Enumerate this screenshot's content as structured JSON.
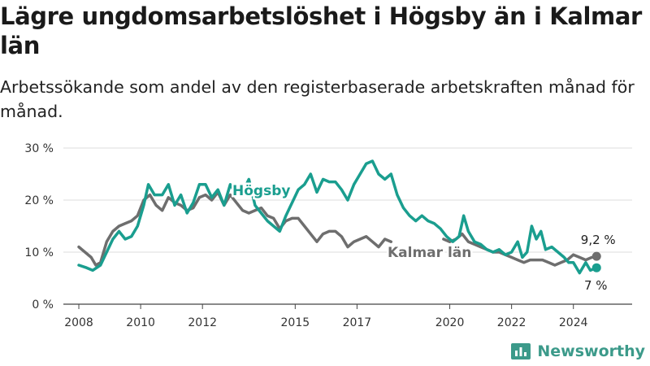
{
  "title": "Lägre ungdomsarbetslöshet i Högsby än i Kalmar län",
  "subtitle": "Arbetssökande som andel av den registerbaserade arbetskraften månad för månad.",
  "brand": "Newsworthy",
  "colors": {
    "hogsby": "#1a9e8f",
    "kalmar": "#6e6e6e",
    "grid": "#dddddd",
    "axis": "#444444"
  },
  "chart_data": {
    "type": "line",
    "x_ticks": [
      "2008",
      "2010",
      "2012",
      "2015",
      "2017",
      "2020",
      "2022",
      "2024"
    ],
    "y_ticks": [
      "0 %",
      "10 %",
      "20 %",
      "30 %"
    ],
    "ylim": [
      0,
      30
    ],
    "xlim": [
      2007.5,
      2025.9
    ],
    "series": [
      {
        "name": "Högsby",
        "end_label": "7 %",
        "points": [
          [
            2008.0,
            7.5
          ],
          [
            2008.25,
            7.0
          ],
          [
            2008.45,
            6.5
          ],
          [
            2008.7,
            7.5
          ],
          [
            2008.9,
            10.0
          ],
          [
            2009.1,
            12.5
          ],
          [
            2009.3,
            14.0
          ],
          [
            2009.5,
            12.5
          ],
          [
            2009.7,
            13.0
          ],
          [
            2009.9,
            15.0
          ],
          [
            2010.1,
            19.0
          ],
          [
            2010.25,
            23.0
          ],
          [
            2010.45,
            21.0
          ],
          [
            2010.7,
            21.0
          ],
          [
            2010.9,
            23.0
          ],
          [
            2011.1,
            19.0
          ],
          [
            2011.3,
            21.0
          ],
          [
            2011.5,
            17.5
          ],
          [
            2011.7,
            19.5
          ],
          [
            2011.9,
            23.0
          ],
          [
            2012.1,
            23.0
          ],
          [
            2012.3,
            20.5
          ],
          [
            2012.5,
            22.0
          ],
          [
            2012.7,
            19.0
          ],
          [
            2012.9,
            23.0
          ],
          [
            2013.1,
            21.0
          ],
          [
            2013.3,
            21.5
          ],
          [
            2013.5,
            24.0
          ],
          [
            2013.7,
            19.0
          ],
          [
            2013.9,
            17.5
          ],
          [
            2014.1,
            16.0
          ],
          [
            2014.3,
            15.0
          ],
          [
            2014.5,
            14.0
          ],
          [
            2014.7,
            17.0
          ],
          [
            2014.9,
            19.5
          ],
          [
            2015.1,
            22.0
          ],
          [
            2015.3,
            23.0
          ],
          [
            2015.5,
            25.0
          ],
          [
            2015.7,
            21.5
          ],
          [
            2015.9,
            24.0
          ],
          [
            2016.1,
            23.5
          ],
          [
            2016.3,
            23.5
          ],
          [
            2016.5,
            22.0
          ],
          [
            2016.7,
            20.0
          ],
          [
            2016.9,
            23.0
          ],
          [
            2017.1,
            25.0
          ],
          [
            2017.3,
            27.0
          ],
          [
            2017.5,
            27.5
          ],
          [
            2017.7,
            25.0
          ],
          [
            2017.9,
            24.0
          ],
          [
            2018.1,
            25.0
          ],
          [
            2018.3,
            21.0
          ],
          [
            2018.5,
            18.5
          ],
          [
            2018.7,
            17.0
          ],
          [
            2018.9,
            16.0
          ],
          [
            2019.1,
            17.0
          ],
          [
            2019.3,
            16.0
          ],
          [
            2019.5,
            15.5
          ],
          [
            2019.7,
            14.5
          ],
          [
            2019.9,
            13.0
          ],
          [
            2020.1,
            12.0
          ],
          [
            2020.3,
            13.0
          ],
          [
            2020.45,
            17.0
          ],
          [
            2020.6,
            14.0
          ],
          [
            2020.8,
            12.0
          ],
          [
            2021.0,
            11.5
          ],
          [
            2021.2,
            10.5
          ],
          [
            2021.4,
            10.0
          ],
          [
            2021.6,
            10.5
          ],
          [
            2021.8,
            9.5
          ],
          [
            2022.0,
            10.0
          ],
          [
            2022.2,
            12.0
          ],
          [
            2022.35,
            9.0
          ],
          [
            2022.5,
            10.0
          ],
          [
            2022.65,
            15.0
          ],
          [
            2022.8,
            12.5
          ],
          [
            2022.95,
            14.0
          ],
          [
            2023.1,
            10.5
          ],
          [
            2023.3,
            11.0
          ],
          [
            2023.5,
            10.0
          ],
          [
            2023.7,
            9.0
          ],
          [
            2023.85,
            8.0
          ],
          [
            2024.0,
            8.0
          ],
          [
            2024.2,
            6.0
          ],
          [
            2024.4,
            8.0
          ],
          [
            2024.55,
            6.5
          ],
          [
            2024.75,
            7.0
          ]
        ]
      },
      {
        "name": "Kalmar län",
        "end_label": "9,2 %",
        "points": [
          [
            2008.0,
            11.0
          ],
          [
            2008.2,
            10.0
          ],
          [
            2008.4,
            9.0
          ],
          [
            2008.55,
            7.5
          ],
          [
            2008.7,
            8.0
          ],
          [
            2008.9,
            12.0
          ],
          [
            2009.1,
            14.0
          ],
          [
            2009.3,
            15.0
          ],
          [
            2009.5,
            15.5
          ],
          [
            2009.7,
            16.0
          ],
          [
            2009.9,
            17.0
          ],
          [
            2010.1,
            20.0
          ],
          [
            2010.3,
            21.0
          ],
          [
            2010.5,
            19.0
          ],
          [
            2010.7,
            18.0
          ],
          [
            2010.9,
            20.5
          ],
          [
            2011.1,
            19.5
          ],
          [
            2011.3,
            19.0
          ],
          [
            2011.5,
            18.0
          ],
          [
            2011.7,
            18.5
          ],
          [
            2011.9,
            20.5
          ],
          [
            2012.1,
            21.0
          ],
          [
            2012.3,
            20.0
          ],
          [
            2012.5,
            21.5
          ],
          [
            2012.7,
            19.0
          ],
          [
            2012.9,
            21.0
          ],
          [
            2013.1,
            19.5
          ],
          [
            2013.3,
            18.0
          ],
          [
            2013.5,
            17.5
          ],
          [
            2013.7,
            18.0
          ],
          [
            2013.9,
            18.5
          ],
          [
            2014.1,
            17.0
          ],
          [
            2014.3,
            16.5
          ],
          [
            2014.5,
            14.5
          ],
          [
            2014.7,
            16.0
          ],
          [
            2014.9,
            16.5
          ],
          [
            2015.1,
            16.5
          ],
          [
            2015.3,
            15.0
          ],
          [
            2015.5,
            13.5
          ],
          [
            2015.7,
            12.0
          ],
          [
            2015.9,
            13.5
          ],
          [
            2016.1,
            14.0
          ],
          [
            2016.3,
            14.0
          ],
          [
            2016.5,
            13.0
          ],
          [
            2016.7,
            11.0
          ],
          [
            2016.9,
            12.0
          ],
          [
            2017.1,
            12.5
          ],
          [
            2017.3,
            13.0
          ],
          [
            2017.5,
            12.0
          ],
          [
            2017.7,
            11.0
          ],
          [
            2017.9,
            12.5
          ],
          [
            2018.1,
            12.0
          ]
        ],
        "points_late": [
          [
            2019.8,
            12.5
          ],
          [
            2020.0,
            12.0
          ],
          [
            2020.2,
            12.5
          ],
          [
            2020.4,
            13.5
          ],
          [
            2020.6,
            12.0
          ],
          [
            2020.8,
            11.5
          ],
          [
            2021.0,
            11.0
          ],
          [
            2021.2,
            10.5
          ],
          [
            2021.4,
            10.0
          ],
          [
            2021.6,
            10.0
          ],
          [
            2021.8,
            9.5
          ],
          [
            2022.0,
            9.0
          ],
          [
            2022.2,
            8.5
          ],
          [
            2022.4,
            8.0
          ],
          [
            2022.6,
            8.5
          ],
          [
            2022.8,
            8.5
          ],
          [
            2023.0,
            8.5
          ],
          [
            2023.2,
            8.0
          ],
          [
            2023.4,
            7.5
          ],
          [
            2023.6,
            8.0
          ],
          [
            2023.8,
            8.5
          ],
          [
            2024.0,
            9.5
          ],
          [
            2024.2,
            9.0
          ],
          [
            2024.4,
            8.5
          ],
          [
            2024.6,
            9.0
          ],
          [
            2024.75,
            9.2
          ]
        ]
      }
    ]
  }
}
